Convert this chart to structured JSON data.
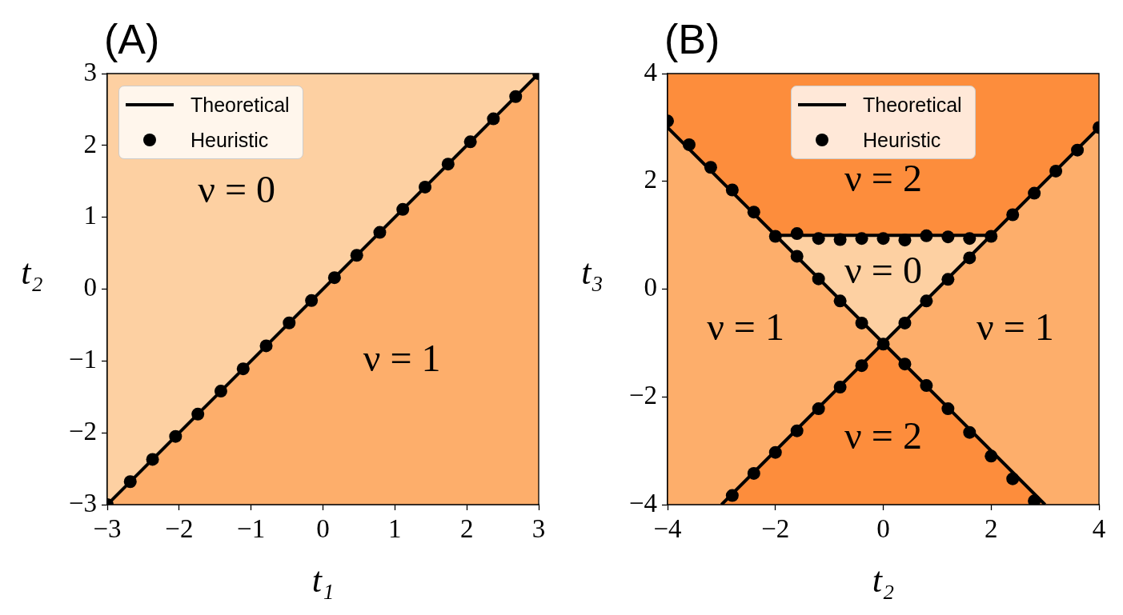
{
  "chart_data": [
    {
      "type": "line",
      "title": "(A)",
      "xlabel": "t₁",
      "ylabel": "t₂",
      "xlim": [
        -3,
        3
      ],
      "ylim": [
        -3,
        3
      ],
      "xticks": [
        -3,
        -2,
        -1,
        0,
        1,
        2,
        3
      ],
      "yticks": [
        -3,
        -2,
        -1,
        0,
        1,
        2,
        3
      ],
      "legend": "top left",
      "series": [
        {
          "color": "#fdd0a2",
          "x": [
            -3,
            -2,
            -1,
            0,
            1,
            2,
            3
          ],
          "values": [
            null,
            null,
            null,
            null,
            null,
            null,
            null
          ],
          "lower": [
            -3,
            -2,
            -1,
            0,
            1,
            2,
            3
          ],
          "upper": [
            3,
            3,
            3,
            3,
            3,
            3,
            3
          ]
        },
        {
          "color": "#fdae6b",
          "x": [
            -3,
            -2,
            -1,
            0
          ],
          "values": [
            null,
            null,
            null,
            null
          ],
          "lower": [
            -3,
            -3,
            -3,
            -3
          ],
          "upper": [
            -3,
            -2,
            -1,
            0
          ]
        },
        {
          "color": "#fdae6b",
          "x": [
            0,
            1,
            2,
            3
          ],
          "values": [
            null,
            null,
            null,
            null
          ],
          "lower": [
            -3,
            -3,
            -3,
            -3
          ],
          "upper": [
            0,
            1,
            2,
            3
          ]
        },
        {
          "name": "Theoretical",
          "color": "#000000",
          "x": [
            -3,
            3
          ],
          "values": [
            -3,
            3
          ]
        },
        {
          "name": "Heuristic",
          "type": "scatter",
          "color": "#000000",
          "marker": "circle",
          "x": [
            -3,
            -2.68,
            -2.37,
            -2.05,
            -1.74,
            -1.42,
            -1.11,
            -0.79,
            -0.47,
            -0.16,
            0.16,
            0.47,
            0.79,
            1.11,
            1.42,
            1.74,
            2.05,
            2.37,
            2.68,
            3
          ],
          "values": [
            -3,
            -2.68,
            -2.37,
            -2.05,
            -1.74,
            -1.42,
            -1.11,
            -0.79,
            -0.47,
            -0.16,
            0.16,
            0.47,
            0.79,
            1.11,
            1.42,
            1.74,
            2.05,
            2.37,
            2.68,
            3
          ]
        }
      ],
      "annotations": [
        "ν = 0",
        "ν = 1"
      ]
    },
    {
      "type": "line",
      "title": "(B)",
      "xlabel": "t₂",
      "ylabel": "t₃",
      "xlim": [
        -4,
        4
      ],
      "ylim": [
        -4,
        4
      ],
      "xticks": [
        -4,
        -2,
        0,
        2,
        4
      ],
      "yticks": [
        -4,
        -2,
        0,
        2,
        4
      ],
      "legend": "top",
      "series": [
        {
          "color": "#fd8d3c",
          "x": [
            -4,
            -2,
            2,
            4
          ],
          "values": [
            null,
            null,
            null,
            null
          ],
          "lower": [
            3,
            1,
            1,
            3
          ],
          "upper": [
            4,
            4,
            4,
            4
          ]
        },
        {
          "color": "#fdae6b",
          "x": [
            -4,
            -3,
            -2,
            0
          ],
          "values": [
            null,
            null,
            null,
            null
          ],
          "lower": [
            -4,
            -4,
            -3,
            -1
          ],
          "upper": [
            3,
            2,
            1,
            -1
          ]
        },
        {
          "color": "#fdae6b",
          "x": [
            0,
            2,
            3,
            4
          ],
          "values": [
            null,
            null,
            null,
            null
          ],
          "lower": [
            -1,
            -3,
            -4,
            -4
          ],
          "upper": [
            -1,
            1,
            2,
            3
          ]
        },
        {
          "color": "#fdd0a2",
          "x": [
            -2,
            0,
            2
          ],
          "values": [
            null,
            null,
            null
          ],
          "lower": [
            1,
            -1,
            1
          ],
          "upper": [
            1,
            1,
            1
          ]
        },
        {
          "color": "#fd8d3c",
          "x": [
            -3,
            0,
            3
          ],
          "values": [
            null,
            null,
            null
          ],
          "lower": [
            -4,
            -4,
            -4
          ],
          "upper": [
            -4,
            -1,
            -4
          ]
        },
        {
          "name": "Theoretical",
          "color": "#000000",
          "x": [
            -4,
            3
          ],
          "values": [
            3,
            -4
          ]
        },
        {
          "color": "#000000",
          "x": [
            -3,
            4
          ],
          "values": [
            -4,
            3
          ]
        },
        {
          "color": "#000000",
          "x": [
            -2,
            2
          ],
          "values": [
            1,
            1
          ]
        },
        {
          "name": "Heuristic",
          "type": "scatter",
          "color": "#000000",
          "marker": "circle",
          "x": [
            -4,
            -3.6,
            -3.2,
            -2.8,
            -2.4,
            -2,
            -1.6,
            -1.2,
            -0.8,
            -0.4,
            0,
            0.4,
            0.8,
            1.2,
            1.6,
            2,
            2.4,
            2.8,
            -2.8,
            -2.4,
            -2,
            -1.6,
            -1.2,
            -0.8,
            -0.4,
            0.4,
            0.8,
            1.2,
            1.6,
            2,
            2.4,
            2.8,
            3.2,
            3.6,
            4,
            -1.6,
            -1.2,
            -0.8,
            -0.4,
            0,
            0.4,
            0.8,
            1.2,
            1.6
          ],
          "values": [
            3.12,
            2.68,
            2.26,
            1.84,
            1.43,
            0.98,
            0.61,
            0.19,
            -0.22,
            -0.63,
            -1.02,
            -1.39,
            -1.79,
            -2.22,
            -2.66,
            -3.1,
            -3.52,
            -3.93,
            -3.83,
            -3.42,
            -3.03,
            -2.63,
            -2.22,
            -1.82,
            -1.42,
            -0.63,
            -0.22,
            0.18,
            0.58,
            0.98,
            1.38,
            1.78,
            2.19,
            2.58,
            3,
            1.03,
            0.94,
            0.92,
            0.94,
            0.94,
            0.91,
            0.99,
            0.97,
            0.94
          ]
        }
      ],
      "annotations": [
        "ν = 2",
        "ν = 0",
        "ν = 1",
        "ν = 1",
        "ν = 2"
      ]
    }
  ]
}
